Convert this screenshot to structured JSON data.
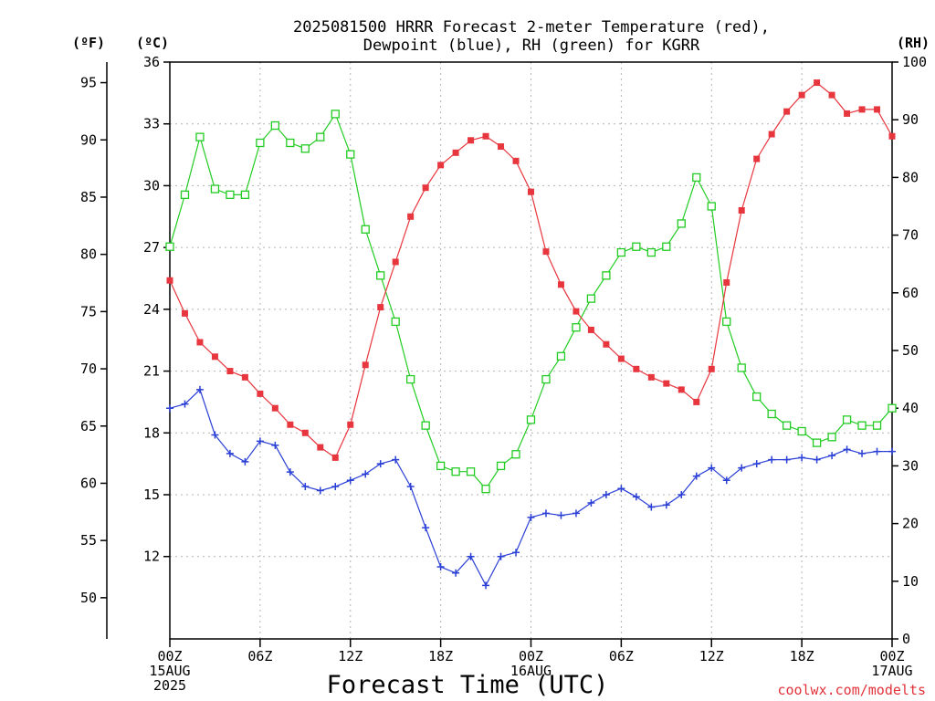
{
  "title": {
    "line1": "2025081500 HRRR Forecast 2-meter Temperature (red),",
    "line2": "Dewpoint (blue), RH (green) for KGRR"
  },
  "credit": "coolwx.com/modelts",
  "chart_data": {
    "type": "line",
    "xlabel": "Forecast Time (UTC)",
    "x_hours": [
      0,
      1,
      2,
      3,
      4,
      5,
      6,
      7,
      8,
      9,
      10,
      11,
      12,
      13,
      14,
      15,
      16,
      17,
      18,
      19,
      20,
      21,
      22,
      23,
      24,
      25,
      26,
      27,
      28,
      29,
      30,
      31,
      32,
      33,
      34,
      35,
      36,
      37,
      38,
      39,
      40,
      41,
      42,
      43,
      44,
      45,
      46,
      47,
      48
    ],
    "x_ticks": [
      {
        "hour": 0,
        "labels": [
          "00Z",
          "15AUG",
          "2025"
        ]
      },
      {
        "hour": 6,
        "labels": [
          "06Z"
        ]
      },
      {
        "hour": 12,
        "labels": [
          "12Z"
        ]
      },
      {
        "hour": 18,
        "labels": [
          "18Z"
        ]
      },
      {
        "hour": 24,
        "labels": [
          "00Z",
          "16AUG"
        ]
      },
      {
        "hour": 30,
        "labels": [
          "06Z"
        ]
      },
      {
        "hour": 36,
        "labels": [
          "12Z"
        ]
      },
      {
        "hour": 42,
        "labels": [
          "18Z"
        ]
      },
      {
        "hour": 48,
        "labels": [
          "00Z",
          "17AUG"
        ]
      }
    ],
    "xlim": [
      0,
      48
    ],
    "axes": {
      "fahrenheit": {
        "unit_label": "(ºF)",
        "ticks": [
          50,
          55,
          60,
          65,
          70,
          75,
          80,
          85,
          90,
          95
        ]
      },
      "celsius": {
        "unit_label": "(ºC)",
        "ylim": [
          8,
          36
        ],
        "ticks": [
          12,
          15,
          18,
          21,
          24,
          27,
          30,
          33,
          36
        ]
      },
      "rh": {
        "unit_label": "(RH)",
        "ylim": [
          0,
          100
        ],
        "ticks": [
          0,
          10,
          20,
          30,
          40,
          50,
          60,
          70,
          80,
          90,
          100
        ]
      }
    },
    "grid": true,
    "series": [
      {
        "name": "Temperature (red)",
        "axis": "celsius",
        "color": "#e8363e",
        "marker": "filled-square",
        "values": [
          25.4,
          23.8,
          22.4,
          21.7,
          21.0,
          20.7,
          19.9,
          19.2,
          18.4,
          18.0,
          17.3,
          16.8,
          18.4,
          21.3,
          24.1,
          26.3,
          28.5,
          29.9,
          31.0,
          31.6,
          32.2,
          32.4,
          31.9,
          31.2,
          29.7,
          26.8,
          25.2,
          23.9,
          23.0,
          22.3,
          21.6,
          21.1,
          20.7,
          20.4,
          20.1,
          19.5,
          21.1,
          25.3,
          28.8,
          31.3,
          32.5,
          33.6,
          34.4,
          35.0,
          34.4,
          33.5,
          33.7,
          33.7,
          32.4
        ]
      },
      {
        "name": "Dewpoint (blue)",
        "axis": "celsius",
        "color": "#2a3fd6",
        "marker": "plus",
        "values": [
          19.2,
          19.4,
          20.1,
          17.9,
          17.0,
          16.6,
          17.6,
          17.4,
          16.1,
          15.4,
          15.2,
          15.4,
          15.7,
          16.0,
          16.5,
          16.7,
          15.4,
          13.4,
          11.5,
          11.2,
          12.0,
          10.6,
          12.0,
          12.2,
          13.9,
          14.1,
          14.0,
          14.1,
          14.6,
          15.0,
          15.3,
          14.9,
          14.4,
          14.5,
          15.0,
          15.9,
          16.3,
          15.7,
          16.3,
          16.5,
          16.7,
          16.7,
          16.8,
          16.7,
          16.9,
          17.2,
          17.0,
          17.1,
          17.1
        ]
      },
      {
        "name": "RH (green)",
        "axis": "rh",
        "color": "#22cc22",
        "marker": "open-square",
        "values": [
          68,
          77,
          87,
          78,
          77,
          77,
          86,
          89,
          86,
          85,
          87,
          91,
          84,
          71,
          63,
          55,
          45,
          37,
          30,
          29,
          29,
          26,
          30,
          32,
          38,
          45,
          49,
          54,
          59,
          63,
          67,
          68,
          67,
          68,
          72,
          80,
          75,
          55,
          47,
          42,
          39,
          37,
          36,
          34,
          35,
          38,
          37,
          37,
          40
        ]
      }
    ]
  }
}
